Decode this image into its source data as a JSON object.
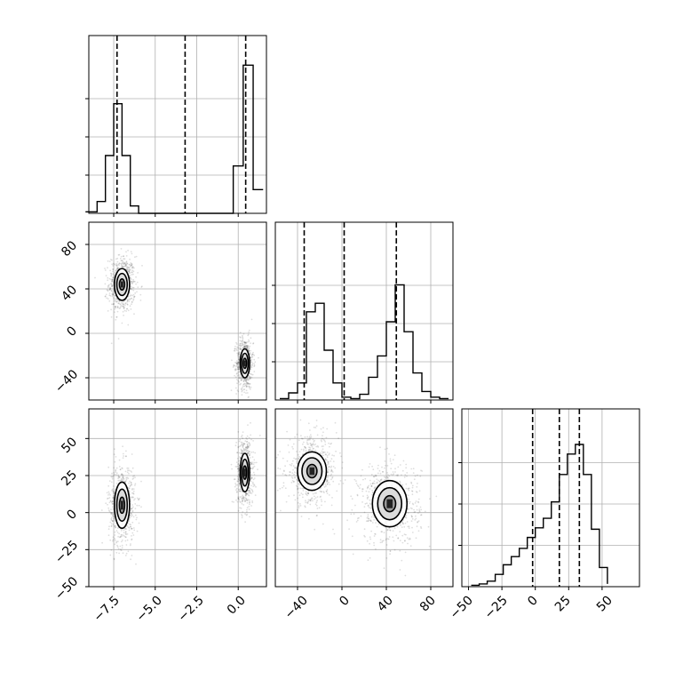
{
  "figure": {
    "type": "corner-plot"
  },
  "chart_data": [
    {
      "id": "p1-marginal",
      "type": "histogram",
      "axis": "x",
      "xlim": [
        -9,
        1.7
      ],
      "ylim": [
        0,
        1.2
      ],
      "bin_edges": [
        -9.2,
        -8.5,
        -8.0,
        -7.5,
        -7.0,
        -6.5,
        -6.0,
        -0.3,
        0.3,
        0.9,
        1.5
      ],
      "counts": [
        0.01,
        0.08,
        0.39,
        0.74,
        0.39,
        0.05,
        0,
        0.32,
        1.0,
        0.16
      ],
      "quantile_lines": [
        -7.3,
        -3.2,
        0.45
      ],
      "grid": true,
      "show_tick_labels": false
    },
    {
      "id": "p2-marginal",
      "type": "histogram",
      "axis": "y",
      "xlim": [
        -60,
        100
      ],
      "ylim": [
        0,
        1.25
      ],
      "bin_edges": [
        -56,
        -48,
        -40,
        -32,
        -24,
        -16,
        -8,
        0,
        8,
        16,
        24,
        32,
        40,
        48,
        56,
        64,
        72,
        80,
        88,
        96
      ],
      "counts": [
        0.01,
        0.05,
        0.12,
        0.62,
        0.68,
        0.35,
        0.12,
        0.02,
        0.01,
        0.04,
        0.16,
        0.31,
        0.55,
        0.81,
        0.48,
        0.19,
        0.06,
        0.02,
        0.01
      ],
      "quantile_lines": [
        -34,
        2,
        49
      ],
      "grid": true,
      "show_tick_labels": false
    },
    {
      "id": "p3-marginal",
      "type": "histogram",
      "axis": "z",
      "xlim": [
        -55,
        78
      ],
      "ylim": [
        0,
        1.3
      ],
      "bin_edges": [
        -48,
        -42,
        -36,
        -30,
        -24,
        -18,
        -12,
        -6,
        0,
        6,
        12,
        18,
        24,
        30,
        36,
        42,
        48,
        54
      ],
      "counts": [
        0.01,
        0.02,
        0.04,
        0.09,
        0.16,
        0.22,
        0.28,
        0.36,
        0.43,
        0.5,
        0.62,
        0.82,
        0.97,
        1.04,
        0.82,
        0.42,
        0.14,
        0.02
      ],
      "quantile_lines": [
        -2,
        18,
        33
      ],
      "grid": true,
      "show_tick_labels": true
    },
    {
      "id": "p1-vs-p2",
      "type": "scatter-contour",
      "x_axis": "x",
      "y_axis": "y",
      "xlim": [
        -9,
        1.7
      ],
      "ylim": [
        -60,
        100
      ],
      "clusters": [
        {
          "center": [
            -7.0,
            44
          ],
          "sd": [
            0.35,
            11
          ]
        },
        {
          "center": [
            0.4,
            -27
          ],
          "sd": [
            0.22,
            10
          ]
        }
      ],
      "y_ticks": [
        -40,
        0,
        40,
        80
      ],
      "grid": true
    },
    {
      "id": "p1-vs-p3",
      "type": "scatter-contour",
      "x_axis": "x",
      "y_axis": "z",
      "xlim": [
        -9,
        1.7
      ],
      "ylim": [
        -50,
        70
      ],
      "clusters": [
        {
          "center": [
            -7.0,
            5
          ],
          "sd": [
            0.35,
            12
          ]
        },
        {
          "center": [
            0.4,
            27
          ],
          "sd": [
            0.22,
            10
          ]
        }
      ],
      "x_ticks": [
        -7.5,
        -5.0,
        -2.5,
        0.0
      ],
      "y_ticks": [
        -50,
        -25,
        0,
        25,
        50
      ],
      "grid": true
    },
    {
      "id": "p2-vs-p3",
      "type": "scatter-contour",
      "x_axis": "y",
      "y_axis": "z",
      "xlim": [
        -60,
        100
      ],
      "ylim": [
        -50,
        70
      ],
      "clusters": [
        {
          "center": [
            -27,
            28
          ],
          "sd": [
            10,
            10
          ]
        },
        {
          "center": [
            43,
            6
          ],
          "sd": [
            12,
            12
          ]
        }
      ],
      "x_ticks": [
        -40,
        0,
        40,
        80
      ],
      "grid": true
    }
  ],
  "tick_labels": {
    "x_x": [
      "−7.5",
      "−5.0",
      "−2.5",
      "0.0"
    ],
    "x_y": [
      "−40",
      "0",
      "40",
      "80"
    ],
    "x_z": [
      "−50",
      "−25",
      "0",
      "25",
      "50"
    ],
    "y_p2": [
      "80",
      "40",
      "0",
      "−40"
    ],
    "y_p3": [
      "50",
      "25",
      "0",
      "−25",
      "−50"
    ]
  },
  "colors": {
    "line": "#000000",
    "grid": "#b0b0b0",
    "point": "#000000"
  }
}
